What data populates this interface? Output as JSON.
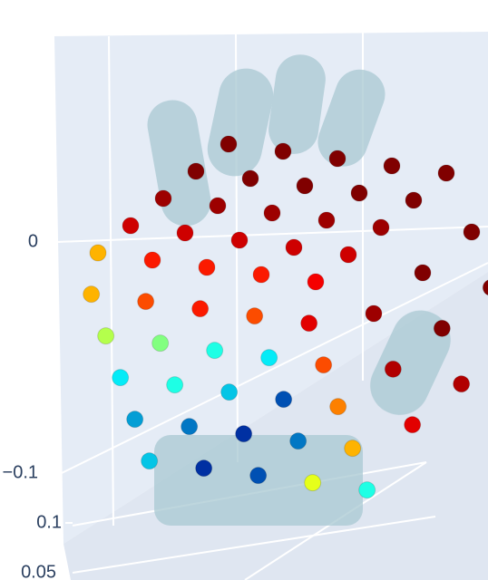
{
  "chart_data": {
    "type": "scatter3d",
    "colorscale": "Jet",
    "xlim": [
      -0.05,
      0.05
    ],
    "ylim": [
      0.03,
      0.13
    ],
    "zlim": [
      -0.1,
      0.05
    ],
    "zticks": [
      0,
      {
        "value": -0.1,
        "label": "−0.1"
      }
    ],
    "yticks": [
      0.1,
      0.05
    ],
    "x": [
      -0.04,
      -0.04,
      -0.04,
      -0.04,
      -0.04,
      -0.02,
      -0.02,
      -0.02,
      -0.02,
      -0.02,
      0,
      0,
      0,
      0,
      0,
      0.02,
      0.02,
      0.02,
      0.02,
      0.02,
      0.04,
      0.04,
      0.04,
      0.04,
      0.04,
      0.05,
      0.05,
      0.05,
      0.05,
      0.05,
      0.05,
      0.05,
      0.05,
      0.05,
      -0.04,
      -0.04,
      -0.04,
      -0.04,
      -0.04,
      -0.02,
      -0.02,
      -0.02,
      -0.02,
      -0.02,
      0,
      0,
      0,
      0,
      0,
      0.02,
      0.02,
      0.02,
      0.02,
      0.02,
      0.04,
      0.04,
      0.04,
      0.04,
      0.04
    ],
    "y": [
      0.04,
      0.06,
      0.08,
      0.1,
      0.12,
      0.04,
      0.06,
      0.08,
      0.1,
      0.12,
      0.04,
      0.06,
      0.08,
      0.1,
      0.12,
      0.04,
      0.06,
      0.08,
      0.1,
      0.12,
      0.04,
      0.06,
      0.08,
      0.1,
      0.12,
      0.05,
      0.05,
      0.05,
      0.08,
      0.08,
      0.08,
      0.11,
      0.11,
      0.11,
      0.03,
      0.03,
      0.03,
      0.03,
      0.03,
      0.03,
      0.03,
      0.03,
      0.03,
      0.03,
      0.03,
      0.03,
      0.03,
      0.03,
      0.03,
      0.03,
      0.03,
      0.03,
      0.03,
      0.03,
      0.03,
      0.03,
      0.03,
      0.03,
      0.03
    ],
    "z": [
      0.05,
      0.05,
      0.05,
      0.05,
      0.05,
      0.05,
      0.05,
      0.05,
      0.05,
      0.05,
      0.05,
      0.05,
      0.05,
      0.05,
      0.05,
      0.05,
      0.05,
      0.05,
      0.05,
      0.05,
      0.05,
      0.05,
      0.05,
      0.05,
      0.05,
      -0.06,
      -0.02,
      0.02,
      -0.06,
      -0.02,
      0.02,
      -0.06,
      -0.02,
      0.02,
      -0.09,
      -0.06,
      -0.03,
      0,
      0.03,
      -0.09,
      -0.06,
      -0.03,
      0,
      0.03,
      -0.09,
      -0.06,
      -0.03,
      0,
      0.03,
      -0.09,
      -0.06,
      -0.03,
      0,
      0.03,
      -0.09,
      -0.06,
      -0.03,
      0,
      0.03
    ],
    "marker_values": [
      0.7,
      0.92,
      0.97,
      1,
      1,
      0.85,
      0.92,
      0.97,
      1,
      1,
      0.85,
      0.92,
      0.97,
      1,
      1,
      0.85,
      0.92,
      0.97,
      1,
      1,
      0.88,
      0.92,
      0.97,
      1,
      1,
      0.9,
      0.95,
      0.97,
      0.95,
      1,
      1,
      0.97,
      1,
      1,
      0.3,
      0.25,
      0.35,
      0.55,
      0.7,
      0.1,
      0.2,
      0.4,
      0.5,
      0.8,
      0.15,
      0.1,
      0.3,
      0.4,
      0.85,
      0.6,
      0.2,
      0.15,
      0.35,
      0.8,
      0.4,
      0.7,
      0.75,
      0.8,
      0.9
    ]
  }
}
